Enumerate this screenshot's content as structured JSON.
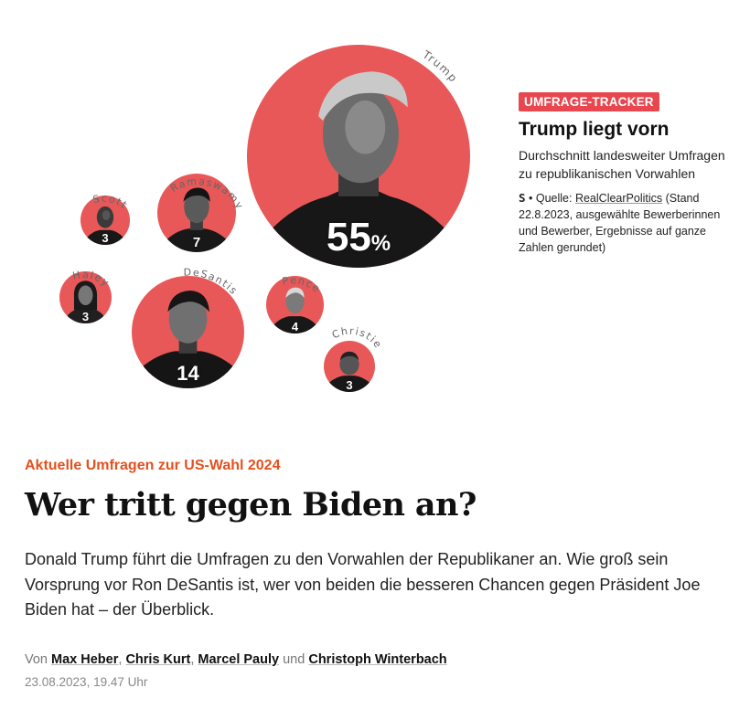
{
  "candidates": [
    {
      "name": "Trump",
      "value": "55",
      "unit": "%"
    },
    {
      "name": "Ramaswamy",
      "value": "7"
    },
    {
      "name": "Scott",
      "value": "3"
    },
    {
      "name": "Haley",
      "value": "3"
    },
    {
      "name": "DeSantis",
      "value": "14"
    },
    {
      "name": "Pence",
      "value": "4"
    },
    {
      "name": "Christie",
      "value": "3"
    }
  ],
  "tracker": {
    "badge": "UMFRAGE-TRACKER",
    "title": "Trump liegt vorn",
    "description": "Durchschnitt landesweiter Umfragen zu republikanischen Vorwahlen",
    "source_logo": "S",
    "source_label": "Quelle:",
    "source_link": "RealClearPolitics",
    "source_note": "(Stand 22.8.2023, ausgewählte Bewerberinnen und Bewerber, Ergebnisse auf ganze Zahlen gerundet)"
  },
  "article": {
    "kicker": "Aktuelle Umfragen zur US-Wahl 2024",
    "headline": "Wer tritt gegen Biden an?",
    "lead": "Donald Trump führt die Umfragen zu den Vorwahlen der Republikaner an. Wie groß sein Vorsprung vor Ron DeSantis ist, wer von beiden die besseren Chancen gegen Präsident Joe Biden hat – der Überblick.",
    "byline_prefix": "Von",
    "authors": [
      "Max Heber",
      "Chris Kurt",
      "Marcel Pauly",
      "Christoph Winterbach"
    ],
    "byline_and": "und",
    "date": "23.08.2023, 19.47 Uhr"
  },
  "colors": {
    "bubble": "#e85858",
    "badge": "#e8474f",
    "kicker": "#e5501e"
  }
}
